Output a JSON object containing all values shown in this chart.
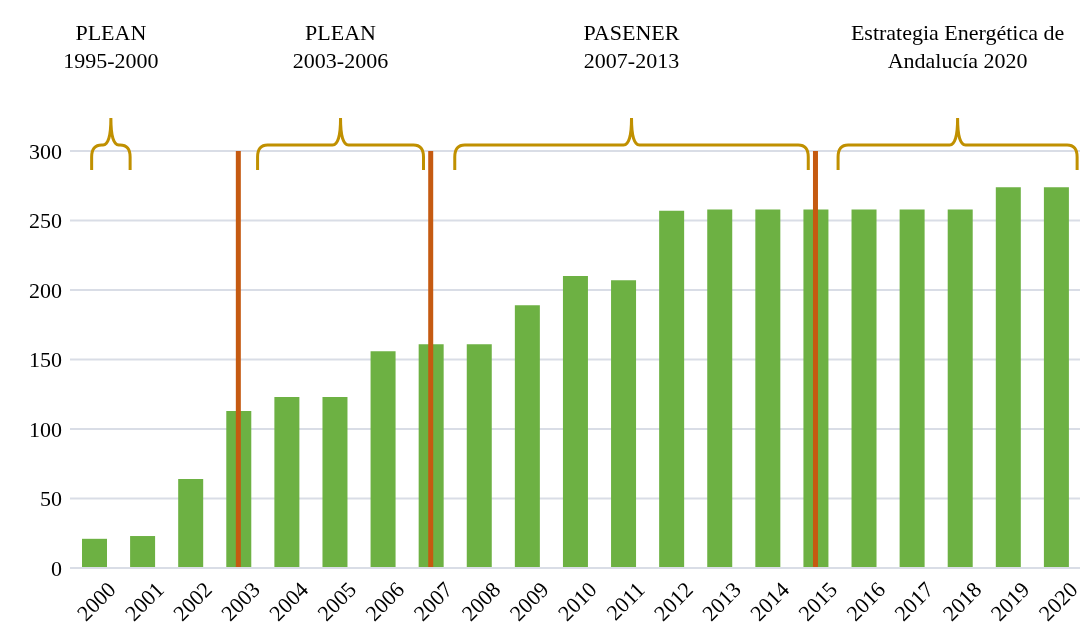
{
  "chart_data": {
    "type": "bar",
    "categories": [
      "2000",
      "2001",
      "2002",
      "2003",
      "2004",
      "2005",
      "2006",
      "2007",
      "2008",
      "2009",
      "2010",
      "2011",
      "2012",
      "2013",
      "2014",
      "2015",
      "2016",
      "2017",
      "2018",
      "2019",
      "2020"
    ],
    "values": [
      21,
      23,
      64,
      113,
      123,
      123,
      156,
      161,
      161,
      189,
      210,
      207,
      257,
      258,
      258,
      258,
      258,
      258,
      258,
      274,
      274
    ],
    "color": "#6db143",
    "ylim": [
      0,
      300
    ],
    "yticks": [
      0,
      50,
      100,
      150,
      200,
      250,
      300
    ],
    "grid": "y",
    "ref_lines": [
      {
        "axis": "x",
        "value": "2003",
        "color": "#c55a11"
      },
      {
        "axis": "x",
        "value": "2007",
        "color": "#c55a11"
      },
      {
        "axis": "x",
        "value": "2015",
        "color": "#c55a11"
      }
    ],
    "annotations": [
      "PLEAN\n1995-2000",
      "PLEAN\n2003-2006",
      "PASENER\n2007-2013",
      "Estrategia Energética de\nAndalucía 2020"
    ]
  }
}
